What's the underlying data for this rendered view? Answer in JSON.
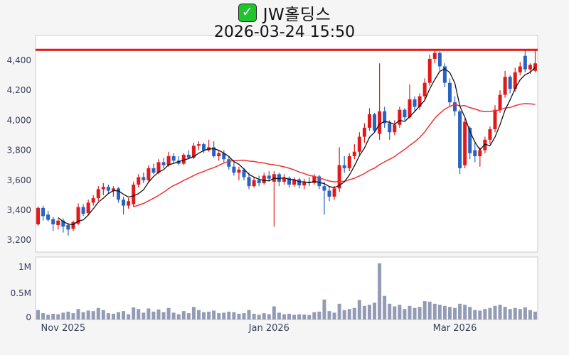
{
  "header": {
    "check_glyph": "✓",
    "title": "JW홀딩스",
    "subtitle": "2026-03-24 15:50"
  },
  "colors": {
    "page_bg": "#f5f5f6",
    "panel_bg": "#ffffff",
    "panel_border": "#cccccc",
    "up_candle": "#e01a1a",
    "down_candle": "#2a62c2",
    "ma_short": "#111111",
    "ma_long": "#f23030",
    "hline": "#ee1111",
    "volume_bar": "#939bb5",
    "axis_text": "#3a4059",
    "title_text": "#141414",
    "checkbox_green": "#1ec62c"
  },
  "chart_data": {
    "type": "candlestick",
    "title": "JW홀딩스",
    "subtitle": "2026-03-24 15:50",
    "grid": false,
    "legend": "none",
    "hline": 4470,
    "ma_short_period": 5,
    "ma_long_period": 20,
    "price_axis": {
      "ticks": [
        3200,
        3400,
        3600,
        3800,
        4000,
        4200,
        4400
      ],
      "ylim": [
        3120,
        4566
      ]
    },
    "volume_axis": {
      "ticks": [
        {
          "value": 0,
          "label": "0"
        },
        {
          "value": 500000,
          "label": "0.5M"
        },
        {
          "value": 1000000,
          "label": "1M"
        }
      ],
      "ylim": [
        0,
        1190000
      ]
    },
    "x_axis": {
      "ticks": [
        {
          "index": 5,
          "label": "Nov 2025"
        },
        {
          "index": 46,
          "label": "Jan 2026"
        },
        {
          "index": 83,
          "label": "Mar 2026"
        }
      ]
    },
    "candles": [
      [
        3305,
        3425,
        3295,
        3415,
        180000
      ],
      [
        3415,
        3430,
        3330,
        3360,
        120000
      ],
      [
        3370,
        3395,
        3325,
        3335,
        90000
      ],
      [
        3340,
        3355,
        3260,
        3305,
        110000
      ],
      [
        3300,
        3340,
        3270,
        3330,
        100000
      ],
      [
        3330,
        3345,
        3250,
        3290,
        130000
      ],
      [
        3300,
        3315,
        3230,
        3270,
        150000
      ],
      [
        3275,
        3330,
        3260,
        3320,
        120000
      ],
      [
        3310,
        3445,
        3300,
        3420,
        200000
      ],
      [
        3420,
        3440,
        3360,
        3375,
        140000
      ],
      [
        3380,
        3470,
        3370,
        3450,
        170000
      ],
      [
        3450,
        3500,
        3430,
        3480,
        160000
      ],
      [
        3480,
        3560,
        3460,
        3540,
        220000
      ],
      [
        3540,
        3580,
        3500,
        3555,
        180000
      ],
      [
        3555,
        3570,
        3510,
        3530,
        120000
      ],
      [
        3530,
        3560,
        3490,
        3545,
        110000
      ],
      [
        3545,
        3555,
        3450,
        3470,
        140000
      ],
      [
        3470,
        3490,
        3370,
        3430,
        160000
      ],
      [
        3430,
        3480,
        3410,
        3460,
        100000
      ],
      [
        3440,
        3590,
        3420,
        3570,
        230000
      ],
      [
        3570,
        3640,
        3550,
        3620,
        200000
      ],
      [
        3620,
        3650,
        3580,
        3600,
        130000
      ],
      [
        3600,
        3700,
        3590,
        3680,
        210000
      ],
      [
        3680,
        3710,
        3640,
        3650,
        150000
      ],
      [
        3650,
        3740,
        3640,
        3720,
        190000
      ],
      [
        3720,
        3750,
        3680,
        3700,
        140000
      ],
      [
        3700,
        3790,
        3690,
        3760,
        220000
      ],
      [
        3760,
        3780,
        3710,
        3730,
        130000
      ],
      [
        3730,
        3760,
        3700,
        3710,
        100000
      ],
      [
        3710,
        3780,
        3700,
        3770,
        160000
      ],
      [
        3770,
        3800,
        3740,
        3750,
        120000
      ],
      [
        3750,
        3850,
        3740,
        3830,
        240000
      ],
      [
        3830,
        3860,
        3800,
        3840,
        180000
      ],
      [
        3840,
        3850,
        3780,
        3800,
        140000
      ],
      [
        3800,
        3870,
        3790,
        3820,
        150000
      ],
      [
        3820,
        3860,
        3750,
        3760,
        170000
      ],
      [
        3760,
        3800,
        3730,
        3780,
        120000
      ],
      [
        3780,
        3800,
        3720,
        3740,
        130000
      ],
      [
        3740,
        3760,
        3670,
        3690,
        150000
      ],
      [
        3690,
        3720,
        3630,
        3650,
        140000
      ],
      [
        3650,
        3690,
        3600,
        3670,
        110000
      ],
      [
        3670,
        3680,
        3600,
        3620,
        120000
      ],
      [
        3620,
        3650,
        3540,
        3560,
        180000
      ],
      [
        3560,
        3620,
        3550,
        3600,
        110000
      ],
      [
        3600,
        3630,
        3560,
        3580,
        90000
      ],
      [
        3580,
        3650,
        3570,
        3630,
        120000
      ],
      [
        3630,
        3660,
        3590,
        3610,
        100000
      ],
      [
        3590,
        3660,
        3290,
        3640,
        250000
      ],
      [
        3640,
        3650,
        3560,
        3590,
        130000
      ],
      [
        3590,
        3640,
        3570,
        3615,
        100000
      ],
      [
        3615,
        3625,
        3550,
        3570,
        110000
      ],
      [
        3570,
        3620,
        3555,
        3605,
        90000
      ],
      [
        3605,
        3615,
        3545,
        3565,
        100000
      ],
      [
        3565,
        3610,
        3540,
        3590,
        95000
      ],
      [
        3590,
        3620,
        3560,
        3580,
        85000
      ],
      [
        3580,
        3640,
        3570,
        3625,
        140000
      ],
      [
        3625,
        3635,
        3540,
        3560,
        150000
      ],
      [
        3560,
        3590,
        3370,
        3530,
        380000
      ],
      [
        3530,
        3560,
        3460,
        3490,
        160000
      ],
      [
        3490,
        3560,
        3470,
        3545,
        130000
      ],
      [
        3545,
        3820,
        3520,
        3700,
        300000
      ],
      [
        3700,
        3760,
        3650,
        3680,
        180000
      ],
      [
        3680,
        3780,
        3660,
        3760,
        200000
      ],
      [
        3760,
        3840,
        3740,
        3790,
        220000
      ],
      [
        3790,
        3920,
        3770,
        3890,
        370000
      ],
      [
        3890,
        3980,
        3850,
        3950,
        260000
      ],
      [
        3950,
        4080,
        3930,
        4040,
        280000
      ],
      [
        4040,
        4050,
        3920,
        3930,
        320000
      ],
      [
        3910,
        4380,
        3870,
        4060,
        1070000
      ],
      [
        4060,
        4090,
        3950,
        3980,
        450000
      ],
      [
        3980,
        4000,
        3870,
        3920,
        300000
      ],
      [
        3920,
        4000,
        3900,
        3970,
        250000
      ],
      [
        3970,
        4090,
        3950,
        4070,
        280000
      ],
      [
        4070,
        4080,
        4000,
        4020,
        200000
      ],
      [
        4020,
        4240,
        4010,
        4140,
        260000
      ],
      [
        4140,
        4160,
        4060,
        4090,
        220000
      ],
      [
        4090,
        4180,
        4070,
        4160,
        240000
      ],
      [
        4160,
        4280,
        4140,
        4250,
        350000
      ],
      [
        4250,
        4440,
        4230,
        4410,
        340000
      ],
      [
        4410,
        4470,
        4380,
        4450,
        300000
      ],
      [
        4450,
        4460,
        4330,
        4360,
        280000
      ],
      [
        4360,
        4380,
        4220,
        4250,
        260000
      ],
      [
        4250,
        4280,
        4090,
        4120,
        240000
      ],
      [
        4120,
        4160,
        4030,
        4060,
        220000
      ],
      [
        4060,
        4070,
        3640,
        3680,
        300000
      ],
      [
        3700,
        4010,
        3680,
        3990,
        280000
      ],
      [
        3950,
        3960,
        3740,
        3780,
        240000
      ],
      [
        3800,
        3850,
        3720,
        3760,
        180000
      ],
      [
        3760,
        3820,
        3690,
        3800,
        170000
      ],
      [
        3800,
        3890,
        3780,
        3870,
        200000
      ],
      [
        3870,
        3960,
        3840,
        3940,
        220000
      ],
      [
        3940,
        4100,
        3920,
        4070,
        260000
      ],
      [
        4070,
        4200,
        4050,
        4170,
        280000
      ],
      [
        4170,
        4330,
        4150,
        4290,
        240000
      ],
      [
        4290,
        4300,
        4180,
        4210,
        200000
      ],
      [
        4210,
        4350,
        4190,
        4320,
        220000
      ],
      [
        4320,
        4390,
        4300,
        4360,
        200000
      ],
      [
        4430,
        4465,
        4320,
        4340,
        230000
      ],
      [
        4340,
        4380,
        4310,
        4370,
        180000
      ],
      [
        4330,
        4470,
        4320,
        4380,
        150000
      ]
    ]
  }
}
